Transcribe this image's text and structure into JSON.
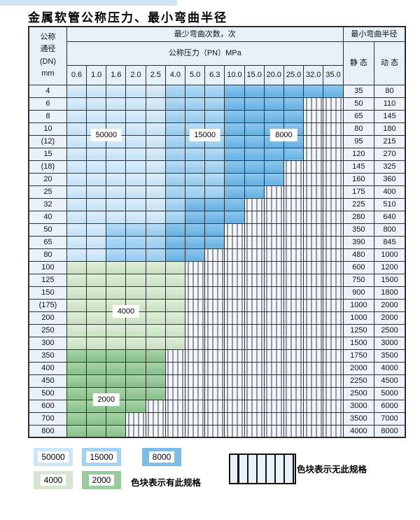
{
  "page": {
    "title": "金属软管公称压力、最小弯曲半径"
  },
  "colors": {
    "blue_50000": "#cde5f7",
    "blue_15000": "#a5d2f0",
    "blue_8000": "#7cbde8",
    "green_4000": "#d5e8cf",
    "green_2000": "#99cb9c",
    "hatch_background": "#f2f7fc",
    "header_background": "#e6f0f9",
    "border": "#2e2e2e",
    "top_strip": "#cfe4f4"
  },
  "table": {
    "corner_header": [
      "公称",
      "通径",
      "(DN)",
      "mm"
    ],
    "bend_cycles_header": "最少弯曲次数，次",
    "pressure_header": "公称压力（PN）MPa",
    "radius_header": "最小弯曲半径",
    "static_header": "静 态",
    "dynamic_header": "动 态",
    "pressure_columns": [
      "0.6",
      "1.0",
      "1.6",
      "2.0",
      "2.5",
      "4.0",
      "5.0",
      "6.3",
      "10.0",
      "15.0",
      "20.0",
      "25.0",
      "32.0",
      "35.0"
    ],
    "zone_codes": {
      "b1": "50000次 色块",
      "b2": "15000次 色块",
      "b3": "8000次 色块",
      "g1": "4000次 色块",
      "g2": "2000次 色块",
      "x": "无此规格(斜线格)"
    },
    "rows": [
      {
        "dn": "4",
        "static": "35",
        "dynamic": "80",
        "cells": [
          "b1",
          "b1",
          "b1",
          "b1",
          "b1",
          "b2",
          "b2",
          "b2",
          "b3",
          "b3",
          "b3",
          "b3",
          "b3",
          "b3"
        ]
      },
      {
        "dn": "6",
        "static": "50",
        "dynamic": "110",
        "cells": [
          "b1",
          "b1",
          "b1",
          "b1",
          "b1",
          "b2",
          "b2",
          "b2",
          "b3",
          "b3",
          "b3",
          "b3",
          "x",
          "x"
        ]
      },
      {
        "dn": "8",
        "static": "65",
        "dynamic": "145",
        "cells": [
          "b1",
          "b1",
          "b1",
          "b1",
          "b1",
          "b2",
          "b2",
          "b2",
          "b3",
          "b3",
          "b3",
          "b3",
          "x",
          "x"
        ]
      },
      {
        "dn": "10",
        "static": "80",
        "dynamic": "180",
        "cells": [
          "b1",
          "b1",
          "b1",
          "b1",
          "b1",
          "b2",
          "b2",
          "b2",
          "b3",
          "b3",
          "b3",
          "b3",
          "x",
          "x"
        ]
      },
      {
        "dn": "(12)",
        "static": "95",
        "dynamic": "215",
        "cells": [
          "b1",
          "b1",
          "b1",
          "b1",
          "b1",
          "b2",
          "b2",
          "b2",
          "b3",
          "b3",
          "b3",
          "b3",
          "x",
          "x"
        ]
      },
      {
        "dn": "15",
        "static": "120",
        "dynamic": "270",
        "cells": [
          "b1",
          "b1",
          "b1",
          "b1",
          "b1",
          "b2",
          "b2",
          "b2",
          "b3",
          "b3",
          "b3",
          "b3",
          "x",
          "x"
        ]
      },
      {
        "dn": "(18)",
        "static": "145",
        "dynamic": "325",
        "cells": [
          "b1",
          "b1",
          "b1",
          "b1",
          "b1",
          "b2",
          "b2",
          "b2",
          "b3",
          "b3",
          "b3",
          "x",
          "x",
          "x"
        ]
      },
      {
        "dn": "20",
        "static": "160",
        "dynamic": "360",
        "cells": [
          "b1",
          "b1",
          "b1",
          "b1",
          "b1",
          "b2",
          "b2",
          "b2",
          "b3",
          "b3",
          "b3",
          "x",
          "x",
          "x"
        ]
      },
      {
        "dn": "25",
        "static": "175",
        "dynamic": "400",
        "cells": [
          "b1",
          "b1",
          "b1",
          "b1",
          "b1",
          "b2",
          "b2",
          "b2",
          "b3",
          "b3",
          "x",
          "x",
          "x",
          "x"
        ]
      },
      {
        "dn": "32",
        "static": "225",
        "dynamic": "510",
        "cells": [
          "b1",
          "b1",
          "b1",
          "b1",
          "b1",
          "b2",
          "b3",
          "b3",
          "b3",
          "x",
          "x",
          "x",
          "x",
          "x"
        ]
      },
      {
        "dn": "40",
        "static": "280",
        "dynamic": "640",
        "cells": [
          "b1",
          "b1",
          "b1",
          "b1",
          "b1",
          "b2",
          "b3",
          "b3",
          "b3",
          "x",
          "x",
          "x",
          "x",
          "x"
        ]
      },
      {
        "dn": "50",
        "static": "350",
        "dynamic": "800",
        "cells": [
          "b1",
          "b1",
          "b2",
          "b2",
          "b2",
          "b3",
          "b3",
          "b3",
          "x",
          "x",
          "x",
          "x",
          "x",
          "x"
        ]
      },
      {
        "dn": "65",
        "static": "390",
        "dynamic": "845",
        "cells": [
          "b1",
          "b1",
          "b2",
          "b2",
          "b2",
          "b3",
          "b3",
          "b3",
          "x",
          "x",
          "x",
          "x",
          "x",
          "x"
        ]
      },
      {
        "dn": "80",
        "static": "480",
        "dynamic": "1000",
        "cells": [
          "b1",
          "b1",
          "b2",
          "b2",
          "b2",
          "b3",
          "b3",
          "x",
          "x",
          "x",
          "x",
          "x",
          "x",
          "x"
        ]
      },
      {
        "dn": "100",
        "static": "600",
        "dynamic": "1200",
        "cells": [
          "g1",
          "g1",
          "g1",
          "g1",
          "g1",
          "g1",
          "x",
          "x",
          "x",
          "x",
          "x",
          "x",
          "x",
          "x"
        ]
      },
      {
        "dn": "125",
        "static": "750",
        "dynamic": "1500",
        "cells": [
          "g1",
          "g1",
          "g1",
          "g1",
          "g1",
          "g1",
          "x",
          "x",
          "x",
          "x",
          "x",
          "x",
          "x",
          "x"
        ]
      },
      {
        "dn": "150",
        "static": "900",
        "dynamic": "1800",
        "cells": [
          "g1",
          "g1",
          "g1",
          "g1",
          "g1",
          "g1",
          "x",
          "x",
          "x",
          "x",
          "x",
          "x",
          "x",
          "x"
        ]
      },
      {
        "dn": "(175)",
        "static": "1000",
        "dynamic": "2000",
        "cells": [
          "g1",
          "g1",
          "g1",
          "g1",
          "g1",
          "g1",
          "x",
          "x",
          "x",
          "x",
          "x",
          "x",
          "x",
          "x"
        ]
      },
      {
        "dn": "200",
        "static": "1000",
        "dynamic": "2000",
        "cells": [
          "g1",
          "g1",
          "g1",
          "g1",
          "g1",
          "g1",
          "x",
          "x",
          "x",
          "x",
          "x",
          "x",
          "x",
          "x"
        ]
      },
      {
        "dn": "250",
        "static": "1250",
        "dynamic": "2500",
        "cells": [
          "g1",
          "g1",
          "g1",
          "g1",
          "g1",
          "g1",
          "x",
          "x",
          "x",
          "x",
          "x",
          "x",
          "x",
          "x"
        ]
      },
      {
        "dn": "300",
        "static": "1500",
        "dynamic": "3000",
        "cells": [
          "g1",
          "g1",
          "g1",
          "g1",
          "g1",
          "g1",
          "x",
          "x",
          "x",
          "x",
          "x",
          "x",
          "x",
          "x"
        ]
      },
      {
        "dn": "350",
        "static": "1750",
        "dynamic": "3500",
        "cells": [
          "g2",
          "g2",
          "g2",
          "g2",
          "g2",
          "x",
          "x",
          "x",
          "x",
          "x",
          "x",
          "x",
          "x",
          "x"
        ]
      },
      {
        "dn": "400",
        "static": "2000",
        "dynamic": "4000",
        "cells": [
          "g2",
          "g2",
          "g2",
          "g2",
          "g2",
          "x",
          "x",
          "x",
          "x",
          "x",
          "x",
          "x",
          "x",
          "x"
        ]
      },
      {
        "dn": "450",
        "static": "2250",
        "dynamic": "4500",
        "cells": [
          "g2",
          "g2",
          "g2",
          "g2",
          "g2",
          "x",
          "x",
          "x",
          "x",
          "x",
          "x",
          "x",
          "x",
          "x"
        ]
      },
      {
        "dn": "500",
        "static": "2500",
        "dynamic": "5000",
        "cells": [
          "g2",
          "g2",
          "g2",
          "g2",
          "g2",
          "x",
          "x",
          "x",
          "x",
          "x",
          "x",
          "x",
          "x",
          "x"
        ]
      },
      {
        "dn": "600",
        "static": "3000",
        "dynamic": "6000",
        "cells": [
          "g2",
          "g2",
          "g2",
          "g2",
          "x",
          "x",
          "x",
          "x",
          "x",
          "x",
          "x",
          "x",
          "x",
          "x"
        ]
      },
      {
        "dn": "700",
        "static": "3500",
        "dynamic": "7000",
        "cells": [
          "g2",
          "g2",
          "g2",
          "x",
          "x",
          "x",
          "x",
          "x",
          "x",
          "x",
          "x",
          "x",
          "x",
          "x"
        ]
      },
      {
        "dn": "800",
        "static": "4000",
        "dynamic": "8000",
        "cells": [
          "g2",
          "g2",
          "g2",
          "x",
          "x",
          "x",
          "x",
          "x",
          "x",
          "x",
          "x",
          "x",
          "x",
          "x"
        ]
      }
    ],
    "overlay_labels": [
      {
        "text": "50000",
        "col": 1,
        "row": 3
      },
      {
        "text": "15000",
        "col": 6,
        "row": 3
      },
      {
        "text": "8000",
        "col": 10,
        "row": 3
      },
      {
        "text": "4000",
        "col": 2,
        "row": 17
      },
      {
        "text": "2000",
        "col": 1,
        "row": 24
      }
    ]
  },
  "legend": {
    "swatches": [
      {
        "value": "50000",
        "zone": "b1"
      },
      {
        "value": "15000",
        "zone": "b2"
      },
      {
        "value": "8000",
        "zone": "b3"
      },
      {
        "value": "4000",
        "zone": "g1"
      },
      {
        "value": "2000",
        "zone": "g2"
      }
    ],
    "available_label": "色块表示有此规格",
    "unavailable_label": "色块表示无此规格"
  }
}
